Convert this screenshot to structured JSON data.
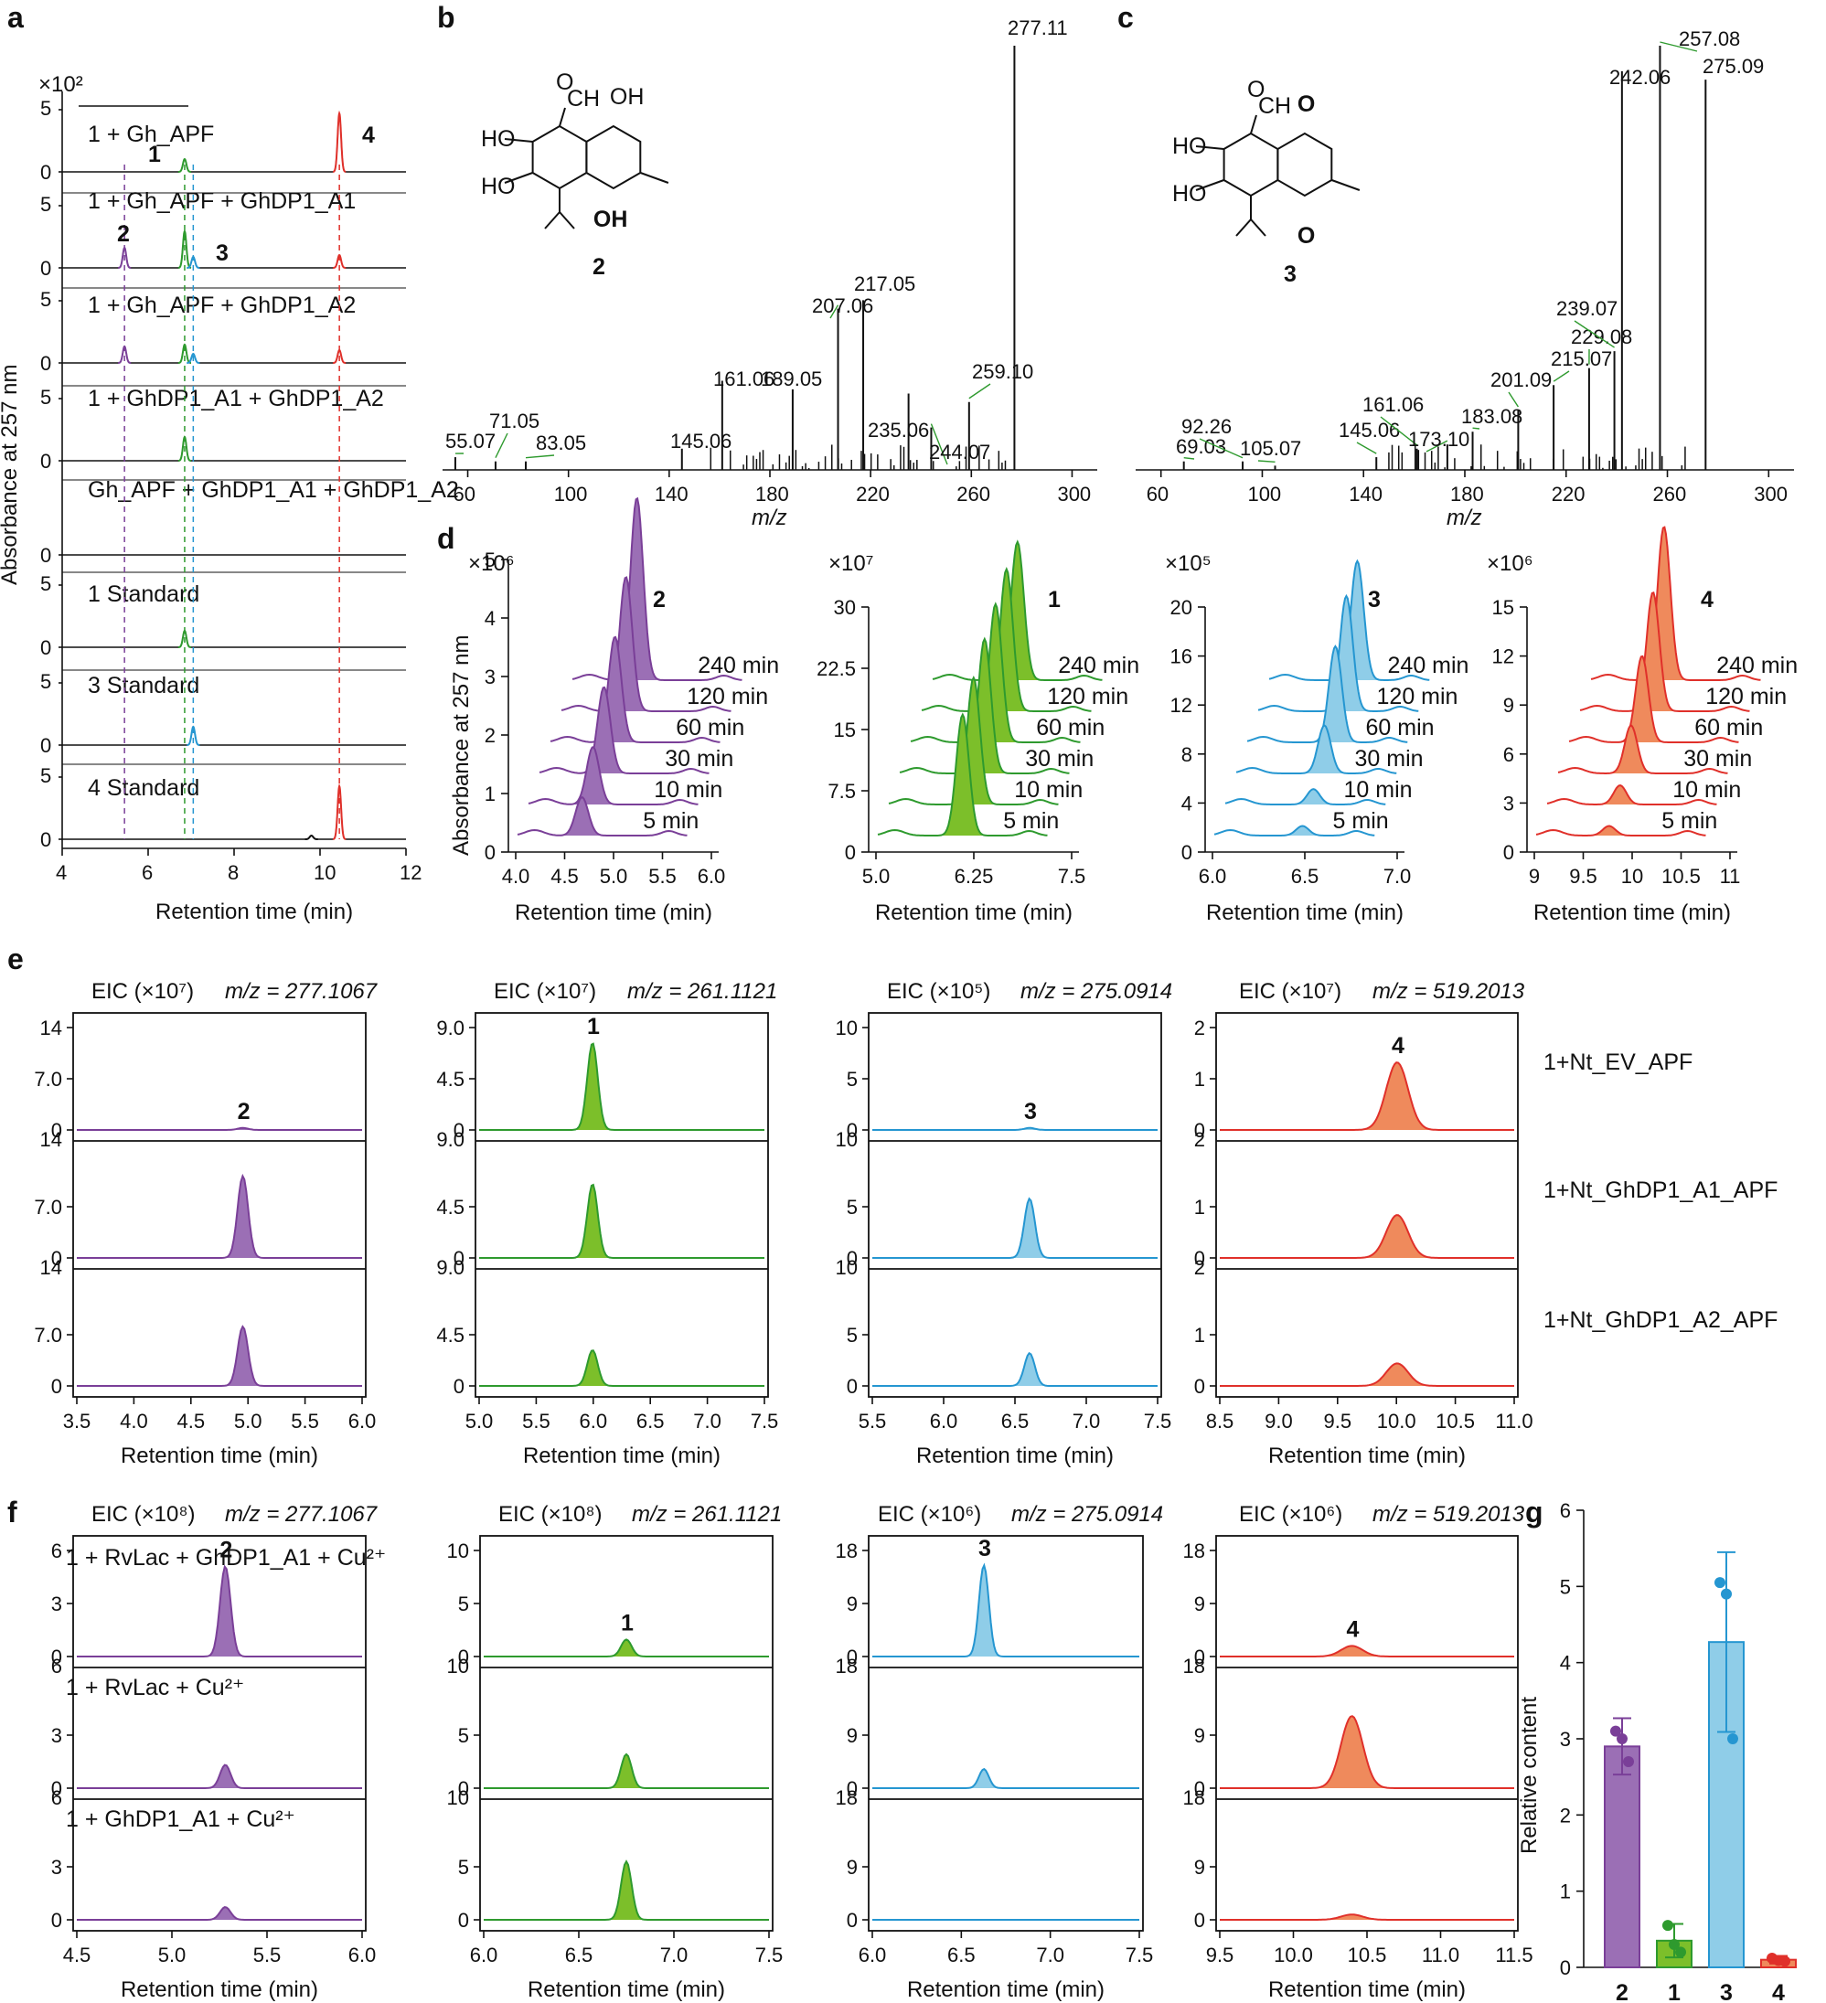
{
  "colors": {
    "c2": "#7a3f98",
    "c1": "#2e9a2e",
    "c3": "#2596d1",
    "c4": "#e0302a",
    "fill1": "#7cbf2a",
    "fill4": "#ef8a5c",
    "fill2": "#9b6fb5",
    "fill3": "#8fcde8"
  },
  "panel_labels": {
    "a": "a",
    "b": "b",
    "c": "c",
    "d": "d",
    "e": "e",
    "f": "f",
    "g": "g"
  },
  "chart_data": [
    {
      "panel": "a",
      "type": "line",
      "multiplier": "×10²",
      "ylabel": "Absorbance at 257 nm",
      "xlabel": "Retention time (min)",
      "xticks": [
        4,
        6,
        8,
        10,
        12
      ],
      "traces": [
        {
          "label": "1 + Gh_APF",
          "yticks": [
            "5",
            "0"
          ]
        },
        {
          "label": "1 + Gh_APF + GhDP1_A1",
          "yticks": [
            "5",
            "0"
          ]
        },
        {
          "label": "1 + Gh_APF + GhDP1_A2",
          "yticks": [
            "5",
            "0"
          ]
        },
        {
          "label": "1 + GhDP1_A1 + GhDP1_A2",
          "yticks": [
            "5",
            "0"
          ]
        },
        {
          "label": "Gh_APF + GhDP1_A1 + GhDP1_A2",
          "yticks": [
            "0"
          ]
        },
        {
          "label": "1 Standard",
          "yticks": [
            "5",
            "0"
          ]
        },
        {
          "label": "3 Standard",
          "yticks": [
            "5",
            "0"
          ]
        },
        {
          "label": "4 Standard",
          "yticks": [
            "5",
            "0"
          ]
        }
      ],
      "peaks": [
        {
          "id": "2",
          "rt": 5.45
        },
        {
          "id": "1",
          "rt": 6.85
        },
        {
          "id": "3",
          "rt": 7.05
        },
        {
          "id": "4",
          "rt": 10.45
        }
      ]
    },
    {
      "panel": "b",
      "type": "bar",
      "compound": "2",
      "xlabel": "m/z",
      "xticks": [
        60,
        100,
        140,
        180,
        220,
        260,
        300
      ],
      "labeled_peaks": [
        {
          "mz": 55.07,
          "label": "55.07",
          "h": 0.03
        },
        {
          "mz": 71.05,
          "label": "71.05",
          "h": 0.02
        },
        {
          "mz": 83.05,
          "label": "83.05",
          "h": 0.02
        },
        {
          "mz": 145.06,
          "label": "145.06",
          "h": 0.05
        },
        {
          "mz": 161.06,
          "label": "161.06",
          "h": 0.21
        },
        {
          "mz": 189.05,
          "label": "189.05",
          "h": 0.19
        },
        {
          "mz": 207.06,
          "label": "207.06",
          "h": 0.38
        },
        {
          "mz": 217.05,
          "label": "217.05",
          "h": 0.4
        },
        {
          "mz": 235.06,
          "label": "235.06",
          "h": 0.18
        },
        {
          "mz": 244.07,
          "label": "244.07",
          "h": 0.1
        },
        {
          "mz": 259.1,
          "label": "259.10",
          "h": 0.16
        },
        {
          "mz": 277.11,
          "label": "277.11",
          "h": 1.0
        }
      ],
      "structure_labels": {
        "oh1": "HO",
        "oh2": "HO",
        "oh3": "OH",
        "oh4": "OH",
        "cho": "CH",
        "o": "O",
        "num": "2"
      }
    },
    {
      "panel": "c",
      "type": "bar",
      "compound": "3",
      "xlabel": "m/z",
      "xticks": [
        60,
        100,
        140,
        180,
        220,
        260,
        300
      ],
      "labeled_peaks": [
        {
          "mz": 69.03,
          "label": "69.03",
          "h": 0.02
        },
        {
          "mz": 92.26,
          "label": "92.26",
          "h": 0.02
        },
        {
          "mz": 105.07,
          "label": "105.07",
          "h": 0.01
        },
        {
          "mz": 145.06,
          "label": "145.06",
          "h": 0.03
        },
        {
          "mz": 161.06,
          "label": "161.06",
          "h": 0.05
        },
        {
          "mz": 173.1,
          "label": "173.10",
          "h": 0.06
        },
        {
          "mz": 183.08,
          "label": "183.08",
          "h": 0.09
        },
        {
          "mz": 201.09,
          "label": "201.09",
          "h": 0.14
        },
        {
          "mz": 215.07,
          "label": "215.07",
          "h": 0.2
        },
        {
          "mz": 229.08,
          "label": "229.08",
          "h": 0.24
        },
        {
          "mz": 239.07,
          "label": "239.07",
          "h": 0.28
        },
        {
          "mz": 242.06,
          "label": "242.06",
          "h": 0.94
        },
        {
          "mz": 257.08,
          "label": "257.08",
          "h": 1.0
        },
        {
          "mz": 275.09,
          "label": "275.09",
          "h": 0.92
        }
      ],
      "structure_labels": {
        "oh1": "HO",
        "oh2": "HO",
        "cho": "CH",
        "o": "O",
        "q1": "O",
        "q2": "O",
        "num": "3"
      }
    },
    {
      "panel": "d",
      "type": "line",
      "ylabel": "Absorbance at 257 nm",
      "xlabel": "Retention time (min)",
      "times": [
        "5 min",
        "10 min",
        "30 min",
        "60 min",
        "120 min",
        "240 min"
      ],
      "subplots": [
        {
          "compound": "2",
          "multiplier": "×10⁶",
          "yticks": [
            "0",
            "1",
            "2",
            "3",
            "4",
            "5"
          ],
          "xticks": [
            "4.0",
            "4.5",
            "5.0",
            "5.5",
            "6.0"
          ]
        },
        {
          "compound": "1",
          "multiplier": "×10⁷",
          "yticks": [
            "0",
            "7.5",
            "15",
            "22.5",
            "30"
          ],
          "xticks": [
            "5.0",
            "6.25",
            "7.5"
          ]
        },
        {
          "compound": "3",
          "multiplier": "×10⁵",
          "yticks": [
            "0",
            "4",
            "8",
            "12",
            "16",
            "20"
          ],
          "xticks": [
            "6.0",
            "6.5",
            "7.0"
          ]
        },
        {
          "compound": "4",
          "multiplier": "×10⁶",
          "yticks": [
            "0",
            "3",
            "6",
            "9",
            "12",
            "15"
          ],
          "xticks": [
            "9",
            "9.5",
            "10",
            "10.5",
            "11"
          ]
        }
      ]
    },
    {
      "panel": "e",
      "type": "line",
      "xlabel": "Retention time (min)",
      "sample_labels": [
        "1+Nt_EV_APF",
        "1+Nt_GhDP1_A1_APF",
        "1+Nt_GhDP1_A2_APF"
      ],
      "subplots": [
        {
          "compound": "2",
          "eic": "EIC (×10⁷)",
          "mz": "m/z = 277.1067",
          "yticks": [
            "14",
            "7.0",
            "0"
          ],
          "xticks": [
            "3.5",
            "4.0",
            "4.5",
            "5.0",
            "5.5",
            "6.0"
          ],
          "peak_heights": [
            0.02,
            0.8,
            0.58
          ]
        },
        {
          "compound": "1",
          "eic": "EIC (×10⁷)",
          "mz": "m/z = 261.1121",
          "yticks": [
            "9.0",
            "4.5",
            "0"
          ],
          "xticks": [
            "5.0",
            "5.5",
            "6.0",
            "6.5",
            "7.0",
            "7.5"
          ],
          "peak_heights": [
            0.85,
            0.72,
            0.35
          ]
        },
        {
          "compound": "3",
          "eic": "EIC (×10⁵)",
          "mz": "m/z = 275.0914",
          "yticks": [
            "10",
            "5",
            "0"
          ],
          "xticks": [
            "5.5",
            "6.0",
            "6.5",
            "7.0",
            "7.5"
          ],
          "peak_heights": [
            0.02,
            0.58,
            0.32
          ]
        },
        {
          "compound": "4",
          "eic": "EIC (×10⁷)",
          "mz": "m/z = 519.2013",
          "yticks": [
            "2",
            "1",
            "0"
          ],
          "xticks": [
            "8.5",
            "9.0",
            "9.5",
            "10.0",
            "10.5",
            "11.0"
          ],
          "peak_heights": [
            0.66,
            0.42,
            0.22
          ]
        }
      ]
    },
    {
      "panel": "f",
      "type": "line",
      "xlabel": "Retention time (min)",
      "sample_labels": [
        "1 + RvLac + GhDP1_A1 + Cu²⁺",
        "1 + RvLac + Cu²⁺",
        "1 + GhDP1_A1 + Cu²⁺"
      ],
      "subplots": [
        {
          "compound": "2",
          "eic": "EIC (×10⁸)",
          "mz": "m/z = 277.1067",
          "yticks": [
            "6",
            "3",
            "0"
          ],
          "xticks": [
            "4.5",
            "5.0",
            "5.5",
            "6.0"
          ],
          "peak_heights": [
            0.85,
            0.22,
            0.12
          ]
        },
        {
          "compound": "1",
          "eic": "EIC (×10⁸)",
          "mz": "m/z = 261.1121",
          "yticks": [
            "10",
            "5",
            "0"
          ],
          "xticks": [
            "6.0",
            "6.5",
            "7.0",
            "7.5"
          ],
          "peak_heights": [
            0.16,
            0.32,
            0.55
          ]
        },
        {
          "compound": "3",
          "eic": "EIC (×10⁶)",
          "mz": "m/z = 275.0914",
          "yticks": [
            "18",
            "9",
            "0"
          ],
          "xticks": [
            "6.0",
            "6.5",
            "7.0",
            "7.5"
          ],
          "peak_heights": [
            0.86,
            0.18,
            0.0
          ]
        },
        {
          "compound": "4",
          "eic": "EIC (×10⁶)",
          "mz": "m/z = 519.2013",
          "yticks": [
            "18",
            "9",
            "0"
          ],
          "xticks": [
            "9.5",
            "10.0",
            "10.5",
            "11.0",
            "11.5"
          ],
          "peak_heights": [
            0.1,
            0.68,
            0.05
          ]
        }
      ]
    },
    {
      "panel": "g",
      "type": "bar",
      "ylabel": "Relative content",
      "ylim": [
        0,
        6
      ],
      "yticks": [
        "0",
        "1",
        "2",
        "3",
        "4",
        "5",
        "6"
      ],
      "categories": [
        "2",
        "1",
        "3",
        "4"
      ],
      "values": [
        2.9,
        0.35,
        4.27,
        0.1
      ],
      "errors": [
        0.37,
        0.22,
        1.18,
        0.05
      ],
      "points": [
        [
          3.1,
          3.0,
          2.7
        ],
        [
          0.55,
          0.3,
          0.2
        ],
        [
          5.05,
          4.9,
          3.0
        ],
        [
          0.12,
          0.09,
          0.08
        ]
      ]
    }
  ]
}
